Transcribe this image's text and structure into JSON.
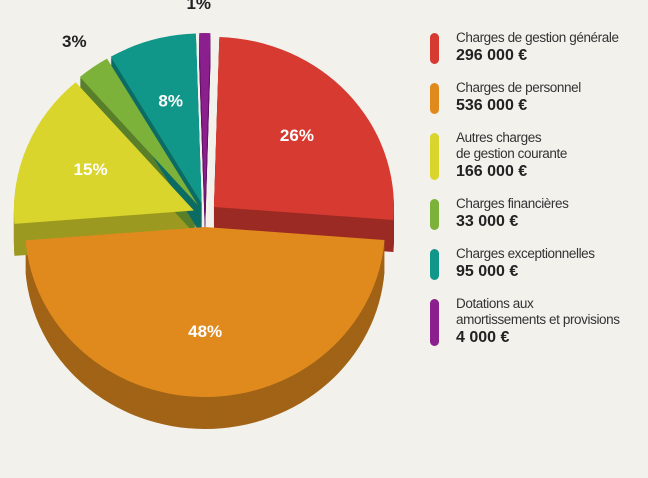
{
  "chart_data": {
    "type": "pie",
    "categories": [
      "Charges de gestion générale",
      "Charges de personnel",
      "Autres charges\nde gestion courante",
      "Charges financières",
      "Charges exceptionnelles",
      "Dotations aux\namortissements et provisions"
    ],
    "values": [
      26,
      48,
      15,
      3,
      8,
      1
    ],
    "value_labels": [
      "26%",
      "48%",
      "15%",
      "3%",
      "8%",
      "1%"
    ],
    "legend_amounts": [
      "296 000 €",
      "536 000 €",
      "166 000 €",
      "33 000 €",
      "95 000 €",
      "4 000 €"
    ],
    "colors": [
      "#d63a30",
      "#e08a1e",
      "#d9d52c",
      "#7cb13a",
      "#11968a",
      "#8b1f8d"
    ]
  }
}
